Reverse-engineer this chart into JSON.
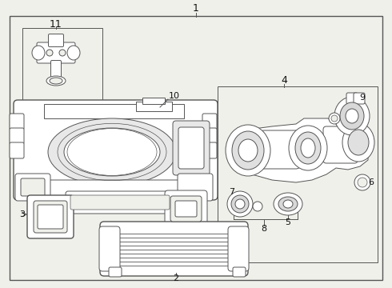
{
  "bg_color": "#f0f0eb",
  "line_color": "#555555",
  "text_color": "#111111",
  "label_leader_color": "#555555"
}
